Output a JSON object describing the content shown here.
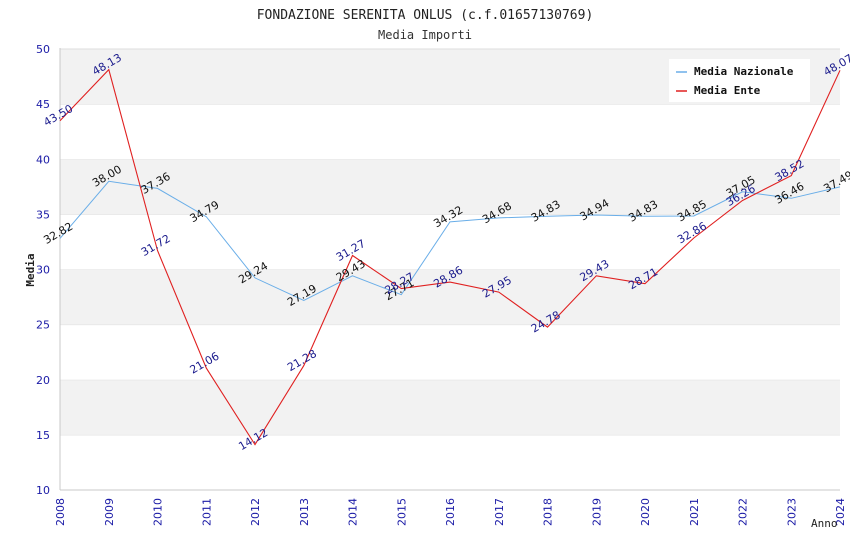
{
  "chart_data": {
    "type": "line",
    "title": "FONDAZIONE SERENITA ONLUS (c.f.01657130769)",
    "subtitle": "Media Importi",
    "xlabel": "Anno",
    "ylabel": "Media",
    "ylim": [
      10,
      50
    ],
    "yticks": [
      "10",
      "15",
      "20",
      "25",
      "30",
      "35",
      "40",
      "45",
      "50"
    ],
    "grid": "horizontal alternating bands",
    "legend_position": "top-right",
    "categories": [
      "2008",
      "2009",
      "2010",
      "2011",
      "2012",
      "2013",
      "2014",
      "2015",
      "2016",
      "2017",
      "2018",
      "2019",
      "2020",
      "2021",
      "2022",
      "2023",
      "2024"
    ],
    "series": [
      {
        "name": "Media Nazionale",
        "color": "#6aaee8",
        "label_color": "#111111",
        "values": [
          32.82,
          38.0,
          37.36,
          34.79,
          29.24,
          27.19,
          29.43,
          27.71,
          34.32,
          34.68,
          34.83,
          34.94,
          34.83,
          34.85,
          37.05,
          36.46,
          37.49
        ],
        "labels": [
          "32.82",
          "38.00",
          "37.36",
          "34.79",
          "29.24",
          "27.19",
          "29.43",
          "27.71",
          "34.32",
          "34.68",
          "34.83",
          "34.94",
          "34.83",
          "34.85",
          "37.05",
          "36.46",
          "37.49"
        ]
      },
      {
        "name": "Media Ente",
        "color": "#e02020",
        "label_color": "#1a1a8c",
        "values": [
          43.5,
          48.13,
          31.72,
          21.06,
          14.12,
          21.28,
          31.27,
          28.27,
          28.86,
          27.95,
          24.78,
          29.43,
          28.71,
          32.86,
          36.26,
          38.52,
          48.07
        ],
        "labels": [
          "43.50",
          "48.13",
          "31.72",
          "21.06",
          "14.12",
          "21.28",
          "31.27",
          "28.27",
          "28.86",
          "27.95",
          "24.78",
          "29.43",
          "28.71",
          "32.86",
          "36.26",
          "38.52",
          "48.07"
        ]
      }
    ]
  }
}
